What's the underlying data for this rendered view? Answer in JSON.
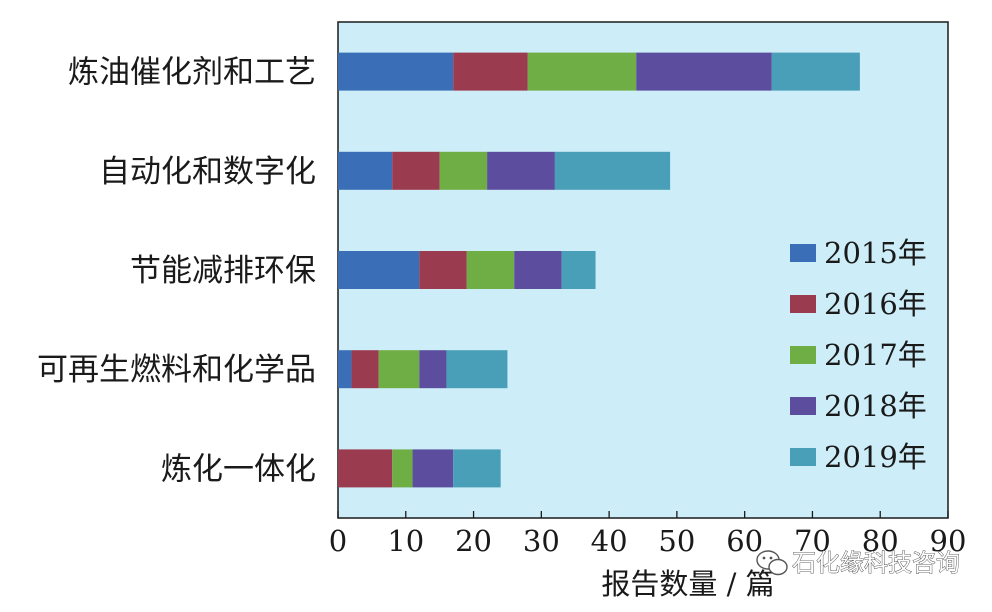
{
  "chart_data": {
    "type": "bar",
    "orientation": "horizontal",
    "stacked": true,
    "categories": [
      "炼油催化剂和工艺",
      "自动化和数字化",
      "节能减排环保",
      "可再生燃料和化学品",
      "炼化一体化"
    ],
    "series": [
      {
        "name": "2015年",
        "color": "#3a6fb7",
        "values": [
          17,
          8,
          12,
          2,
          0
        ]
      },
      {
        "name": "2016年",
        "color": "#9b3b4f",
        "values": [
          11,
          7,
          7,
          4,
          8
        ]
      },
      {
        "name": "2017年",
        "color": "#6fae45",
        "values": [
          16,
          7,
          7,
          6,
          3
        ]
      },
      {
        "name": "2018年",
        "color": "#5d4d9e",
        "values": [
          20,
          10,
          7,
          4,
          6
        ]
      },
      {
        "name": "2019年",
        "color": "#4a9fb8",
        "values": [
          13,
          17,
          5,
          9,
          7
        ]
      }
    ],
    "xlim": [
      0,
      90
    ],
    "xticks": [
      0,
      10,
      20,
      30,
      40,
      50,
      60,
      70,
      80,
      90
    ],
    "xlabel": "报告数量 / 篇",
    "ylabel": "",
    "title": "",
    "legend_position": "right",
    "plot_background": "#cdeef8",
    "grid": false
  },
  "watermark": {
    "text": "石化缘科技咨询",
    "icon": "wechat-icon"
  }
}
